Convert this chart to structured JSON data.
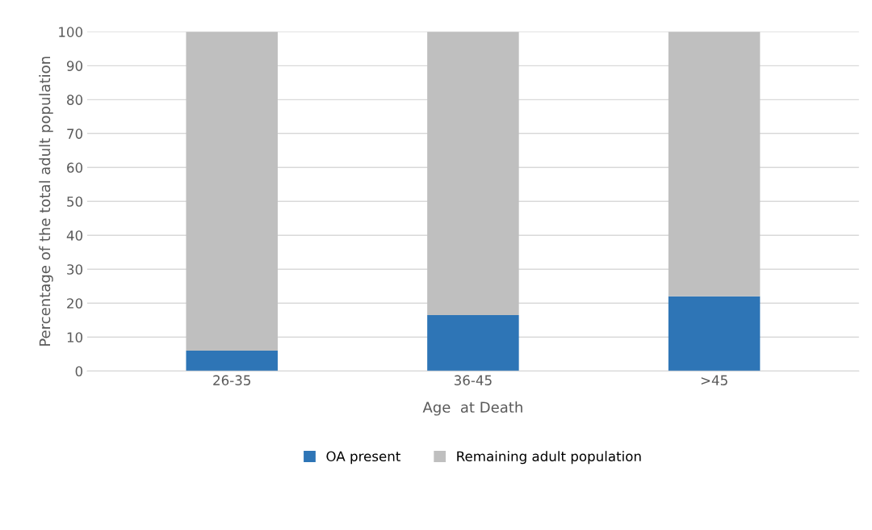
{
  "chart_data": {
    "type": "bar",
    "stacked": true,
    "xlabel": "Age  at Death",
    "ylabel": "Percentage of the total adult population",
    "categories": [
      "26-35",
      "36-45",
      ">45"
    ],
    "series": [
      {
        "name": "OA present",
        "color": "#2e75b6",
        "values": [
          6,
          16.5,
          22
        ]
      },
      {
        "name": "Remaining adult population",
        "color": "#bfbfbf",
        "values": [
          94,
          83.5,
          78
        ]
      }
    ],
    "ylim": [
      0,
      100
    ],
    "yticks": [
      0,
      10,
      20,
      30,
      40,
      50,
      60,
      70,
      80,
      90,
      100
    ],
    "grid": "y",
    "legend": "bottom"
  }
}
